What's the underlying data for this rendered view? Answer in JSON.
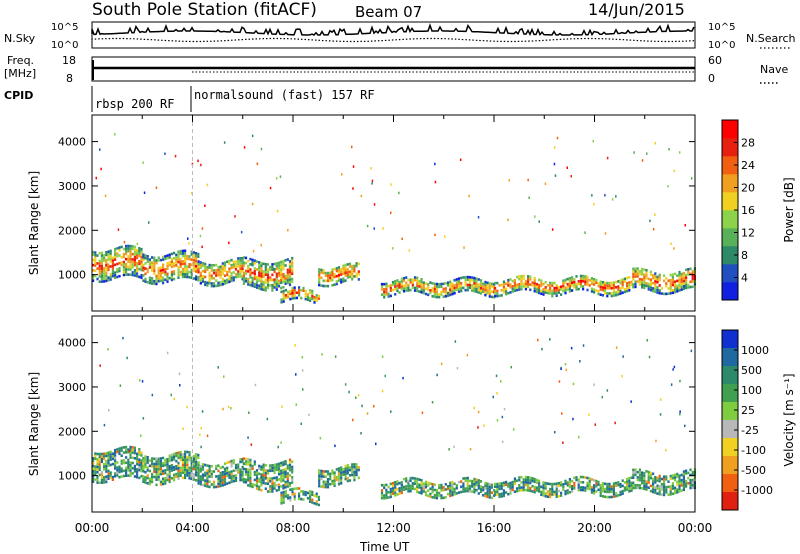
{
  "header": {
    "title": "South Pole Station (fitACF)",
    "beam": "Beam 07",
    "date": "14/Jun/2015"
  },
  "top_panels": {
    "nsky_label": "N.Sky",
    "nsearch_label": "N.Search",
    "nsky_ticks": [
      "10^5",
      "10^0"
    ],
    "nsky_right_ticks": [
      "10^5",
      "10^0"
    ],
    "freq_label": "Freq.",
    "freq_unit": "[MHz]",
    "freq_ticks": [
      "18",
      "8"
    ],
    "nave_ticks": [
      "60",
      "0"
    ],
    "nave_label": "Nave",
    "cpid_label": "CPID",
    "cpid_segments": [
      {
        "label": "rbsp 200 RF",
        "start_hour": 0
      },
      {
        "label": "normalsound (fast) 157 RF",
        "start_hour": 4
      }
    ]
  },
  "axes": {
    "ylabel": "Slant Range [km]",
    "xlabel": "Time UT",
    "x_ticks": [
      "00:00",
      "04:00",
      "08:00",
      "12:00",
      "16:00",
      "20:00",
      "00:00"
    ],
    "y_ticks": [
      "1000",
      "2000",
      "3000",
      "4000"
    ]
  },
  "colorbars": {
    "power": {
      "label": "Power [dB]",
      "ticks": [
        "4",
        "8",
        "12",
        "16",
        "20",
        "24",
        "28"
      ],
      "colors": [
        "#1020e0",
        "#2050c0",
        "#2e8a66",
        "#58b058",
        "#8cd24a",
        "#f0d020",
        "#f0a020",
        "#f06010",
        "#e82010",
        "#ff0000"
      ]
    },
    "velocity": {
      "label": "Velocity [m s⁻¹]",
      "ticks": [
        "1000",
        "500",
        "100",
        "25",
        "-25",
        "-100",
        "-500",
        "-1000"
      ],
      "colors": [
        "#1030d0",
        "#2068a0",
        "#2c8a6a",
        "#40a050",
        "#80cc40",
        "#b8b8b8",
        "#f0d020",
        "#f0a020",
        "#f06010",
        "#e02010"
      ]
    }
  },
  "chart_data": {
    "type": "heatmap",
    "title": "South Pole Station (fitACF)",
    "xlabel": "Time UT",
    "ylabel": "Slant Range [km]",
    "xlim_hours": [
      0,
      24
    ],
    "ylim_km": [
      180,
      4600
    ],
    "series": [
      {
        "name": "Power [dB]",
        "zlim": [
          0,
          30
        ]
      },
      {
        "name": "Velocity [m s⁻¹]",
        "zlim": [
          -1000,
          1000
        ]
      }
    ],
    "echo_bands": [
      {
        "t_start": 0.0,
        "t_end": 2.0,
        "r_center": 1300,
        "r_width": 700
      },
      {
        "t_start": 2.0,
        "t_end": 4.2,
        "r_center": 1200,
        "r_width": 600
      },
      {
        "t_start": 4.2,
        "t_end": 6.0,
        "r_center": 1100,
        "r_width": 500
      },
      {
        "t_start": 6.0,
        "t_end": 8.0,
        "r_center": 1050,
        "r_width": 600
      },
      {
        "t_start": 7.5,
        "t_end": 9.0,
        "r_center": 550,
        "r_width": 250
      },
      {
        "t_start": 9.0,
        "t_end": 10.6,
        "r_center": 1050,
        "r_width": 400
      },
      {
        "t_start": 11.5,
        "t_end": 16.0,
        "r_center": 750,
        "r_width": 300
      },
      {
        "t_start": 16.0,
        "t_end": 21.5,
        "r_center": 800,
        "r_width": 350
      },
      {
        "t_start": 21.5,
        "t_end": 24.0,
        "r_center": 900,
        "r_width": 450
      }
    ]
  }
}
